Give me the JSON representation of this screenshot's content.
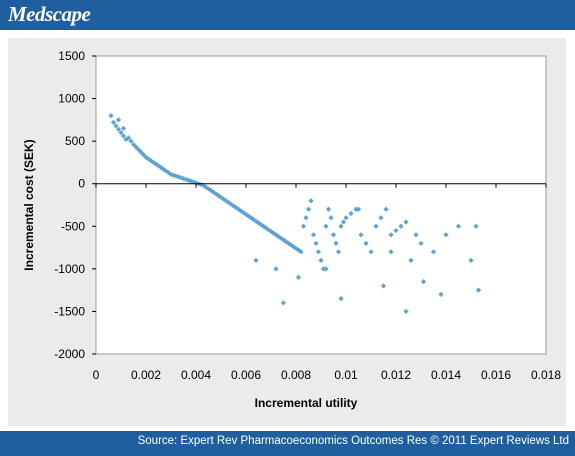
{
  "header": {
    "logo_text": "Medscape",
    "brand_color": "#1f5fa0"
  },
  "footer": {
    "source_text": "Source: Expert Rev Pharmacoeconomics Outcomes Res © 2011 Expert Reviews Ltd"
  },
  "chart_data": {
    "type": "scatter",
    "title": "",
    "xlabel": "Incremental utility",
    "ylabel": "Incremental cost (SEK)",
    "xlim": [
      0,
      0.018
    ],
    "ylim": [
      -2000,
      1500
    ],
    "xticks": [
      0,
      0.002,
      0.004,
      0.006,
      0.008,
      0.01,
      0.012,
      0.014,
      0.016,
      0.018
    ],
    "xtick_labels": [
      "0",
      "0.002",
      "0.004",
      "0.006",
      "0.008",
      "0.01",
      "0.012",
      "0.014",
      "0.016",
      "0.018"
    ],
    "yticks": [
      -2000,
      -1500,
      -1000,
      -500,
      0,
      500,
      1000,
      1500
    ],
    "ytick_labels": [
      "-2000",
      "-1500",
      "-1000",
      "-500",
      "0",
      "500",
      "1000",
      "1500"
    ],
    "grid": false,
    "point_color": "#5ba3d9",
    "series": [
      {
        "x": [
          0.0006,
          0.0007,
          0.0008,
          0.0009,
          0.001,
          0.0011,
          0.0012,
          0.0009,
          0.0011,
          0.0013,
          0.0014,
          0.0015,
          0.0016,
          0.0017,
          0.0018,
          0.0019,
          0.002,
          0.0021,
          0.0022,
          0.0023,
          0.0024,
          0.0025,
          0.0026,
          0.0027,
          0.0028,
          0.0029,
          0.003,
          0.0031,
          0.0032,
          0.0033,
          0.0034,
          0.0035,
          0.0036,
          0.0037,
          0.0038,
          0.0039,
          0.004,
          0.0041,
          0.0042,
          0.0043,
          0.0044,
          0.0045,
          0.0046,
          0.0047,
          0.0048,
          0.0049,
          0.005,
          0.0051,
          0.0052,
          0.0053,
          0.0054,
          0.0055,
          0.0056,
          0.0057,
          0.0058,
          0.0059,
          0.006,
          0.0061,
          0.0062,
          0.0063,
          0.0064,
          0.0065,
          0.0066,
          0.0067,
          0.0068,
          0.0069,
          0.007,
          0.0071,
          0.0072,
          0.0073,
          0.0074,
          0.0075,
          0.0076,
          0.0077,
          0.0078,
          0.0079,
          0.008,
          0.0081,
          0.0082,
          0.0083,
          0.0084,
          0.0085,
          0.0086,
          0.0087,
          0.0088,
          0.0089,
          0.009,
          0.0091,
          0.0092,
          0.0093,
          0.0094,
          0.0095,
          0.0096,
          0.0097,
          0.0098,
          0.0099,
          0.01,
          0.0102,
          0.0104,
          0.0106,
          0.0108,
          0.011,
          0.0112,
          0.0114,
          0.0116,
          0.0118,
          0.012,
          0.0122,
          0.0124,
          0.0126,
          0.0128,
          0.013,
          0.0135,
          0.014,
          0.0145,
          0.015,
          0.0152,
          0.0153,
          0.0124,
          0.0075,
          0.0098,
          0.0115,
          0.0072,
          0.0105,
          0.0138,
          0.0081,
          0.0092,
          0.0064,
          0.0118,
          0.0131
        ],
        "y": [
          800,
          720,
          680,
          640,
          600,
          560,
          520,
          750,
          650,
          540,
          500,
          460,
          430,
          400,
          370,
          340,
          310,
          290,
          270,
          250,
          230,
          210,
          190,
          170,
          150,
          130,
          110,
          100,
          90,
          80,
          70,
          60,
          50,
          40,
          30,
          20,
          10,
          0,
          -10,
          -20,
          -40,
          -60,
          -80,
          -100,
          -120,
          -140,
          -160,
          -180,
          -200,
          -220,
          -240,
          -260,
          -280,
          -300,
          -320,
          -340,
          -360,
          -380,
          -400,
          -420,
          -440,
          -460,
          -480,
          -500,
          -520,
          -540,
          -560,
          -580,
          -600,
          -620,
          -640,
          -660,
          -680,
          -700,
          -720,
          -740,
          -760,
          -780,
          -800,
          -500,
          -400,
          -300,
          -200,
          -600,
          -700,
          -800,
          -900,
          -1000,
          -500,
          -300,
          -400,
          -600,
          -700,
          -800,
          -500,
          -450,
          -400,
          -350,
          -300,
          -600,
          -700,
          -800,
          -500,
          -400,
          -300,
          -600,
          -550,
          -500,
          -450,
          -900,
          -600,
          -700,
          -800,
          -600,
          -500,
          -900,
          -500,
          -1250,
          -1500,
          -1400,
          -1350,
          -1200,
          -1000,
          -300,
          -1300,
          -1100,
          -1000,
          -900,
          -800,
          -1150
        ]
      }
    ]
  }
}
